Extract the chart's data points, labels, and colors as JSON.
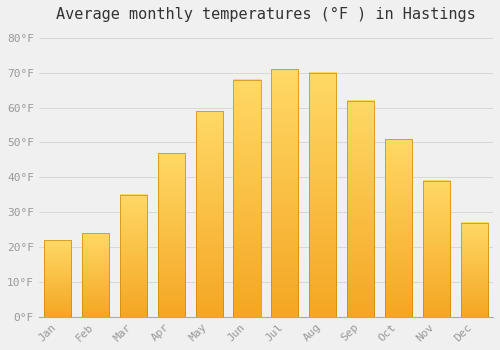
{
  "title": "Average monthly temperatures (°F ) in Hastings",
  "months": [
    "Jan",
    "Feb",
    "Mar",
    "Apr",
    "May",
    "Jun",
    "Jul",
    "Aug",
    "Sep",
    "Oct",
    "Nov",
    "Dec"
  ],
  "values": [
    22,
    24,
    35,
    47,
    59,
    68,
    71,
    70,
    62,
    51,
    39,
    27
  ],
  "bar_color_bottom": "#F5A623",
  "bar_color_top": "#FFD966",
  "bar_edge_color": "#C8890A",
  "background_color": "#F0F0F0",
  "grid_color": "#D8D8D8",
  "ylim": [
    0,
    83
  ],
  "yticks": [
    0,
    10,
    20,
    30,
    40,
    50,
    60,
    70,
    80
  ],
  "ytick_labels": [
    "0°F",
    "10°F",
    "20°F",
    "30°F",
    "40°F",
    "50°F",
    "60°F",
    "70°F",
    "80°F"
  ],
  "title_fontsize": 11,
  "tick_fontsize": 8,
  "font_family": "monospace"
}
